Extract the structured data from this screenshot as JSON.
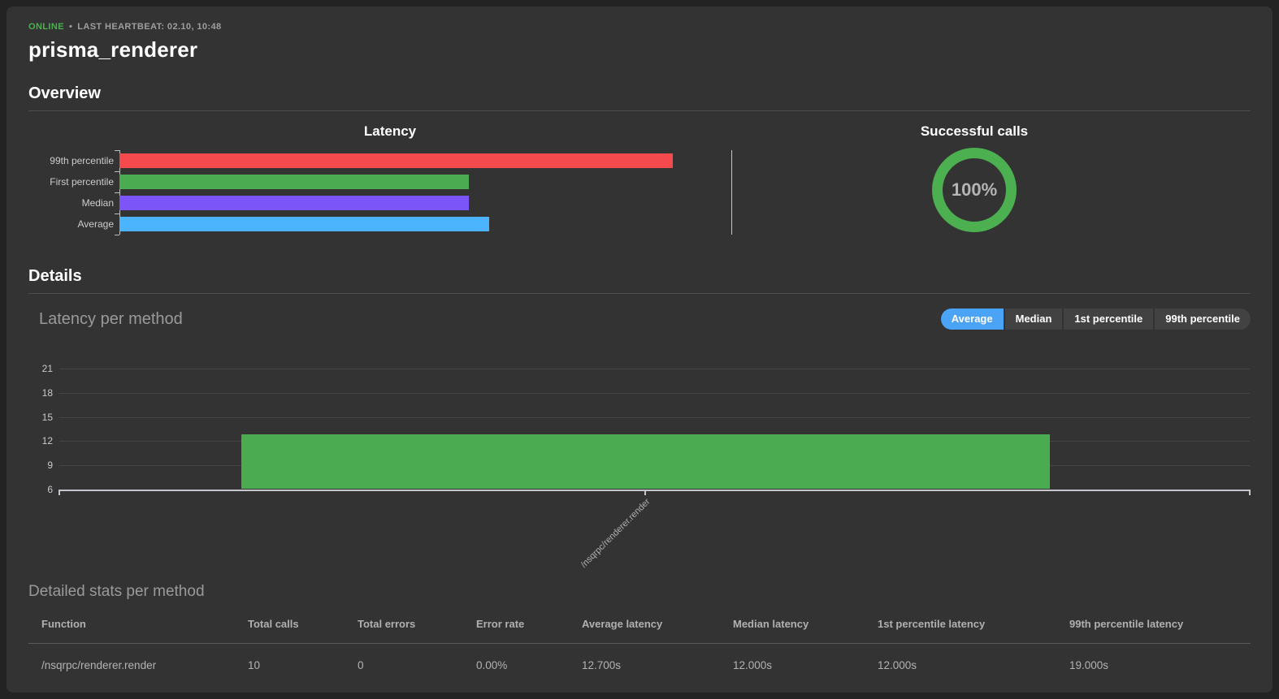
{
  "header": {
    "status": "ONLINE",
    "separator": "•",
    "heartbeat": "LAST HEARTBEAT: 02.10, 10:48",
    "title": "prisma_renderer"
  },
  "sections": {
    "overview": "Overview",
    "details": "Details"
  },
  "colors": {
    "accent_green": "#4caf50",
    "bar_red": "#f4494d",
    "bar_green": "#4aab51",
    "bar_purple": "#7c55f8",
    "bar_blue": "#4cb4fc",
    "toggle_selected_blue": "#4aa3f4",
    "panel_bg": "#333333"
  },
  "details": {
    "chart": {
      "toggles": [
        {
          "label": "Average",
          "selected": true
        },
        {
          "label": "Median",
          "selected": false
        },
        {
          "label": "1st percentile",
          "selected": false
        },
        {
          "label": "99th percentile",
          "selected": false
        }
      ]
    },
    "table": {
      "title": "Detailed stats per method",
      "headers": [
        "Function",
        "Total calls",
        "Total errors",
        "Error rate",
        "Average latency",
        "Median latency",
        "1st percentile latency",
        "99th percentile latency"
      ],
      "rows": [
        [
          "/nsqrpc/renderer.render",
          "10",
          "0",
          "0.00%",
          "12.700s",
          "12.000s",
          "12.000s",
          "19.000s"
        ]
      ]
    }
  },
  "chart_data": [
    {
      "type": "bar",
      "orientation": "horizontal",
      "title": "Latency",
      "categories": [
        "99th percentile",
        "First percentile",
        "Median",
        "Average"
      ],
      "values": [
        19,
        12,
        12,
        12.7
      ],
      "unit": "s",
      "colors": [
        "#f4494d",
        "#4aab51",
        "#7c55f8",
        "#4cb4fc"
      ],
      "xlim": [
        0,
        21
      ],
      "grid": false,
      "legend": false
    },
    {
      "type": "pie",
      "variant": "donut",
      "title": "Successful calls",
      "labels": [
        "successful"
      ],
      "values": [
        100
      ],
      "center_label": "100%",
      "color": "#4caf50",
      "legend": false
    },
    {
      "type": "bar",
      "orientation": "vertical",
      "title": "Latency per method",
      "selected_metric": "Average",
      "categories": [
        "/nsqrpc/renderer.render"
      ],
      "values": [
        12.7
      ],
      "unit": "s",
      "bar_color": "#4aab51",
      "ylim": [
        6,
        21
      ],
      "yticks": [
        6,
        9,
        12,
        15,
        18,
        21
      ],
      "grid": true,
      "legend": false
    }
  ]
}
